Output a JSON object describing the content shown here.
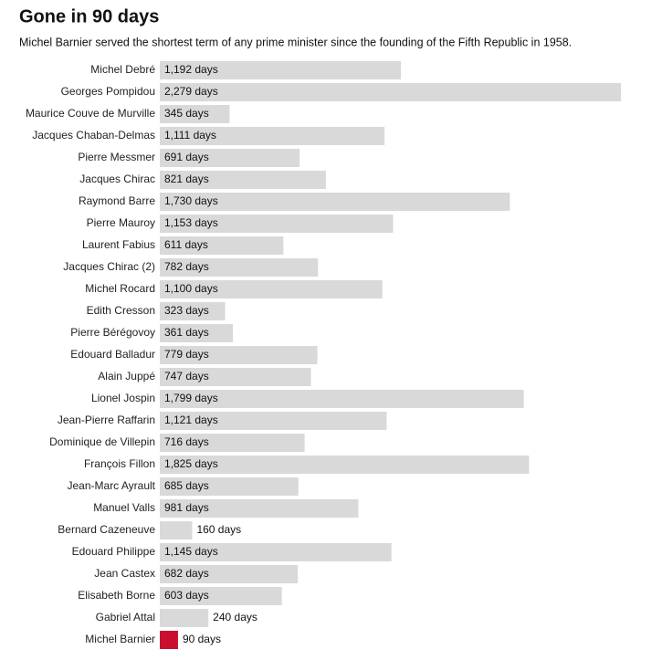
{
  "chart_data": {
    "type": "hbar",
    "title": "Gone in 90 days",
    "subtitle": "Michel Barnier served the shortest term of any prime minister since the founding of the Fifth Republic in 1958.",
    "categories": [
      "Michel Debré",
      "Georges Pompidou",
      "Maurice Couve de Murville",
      "Jacques Chaban-Delmas",
      "Pierre Messmer",
      "Jacques Chirac",
      "Raymond Barre",
      "Pierre Mauroy",
      "Laurent Fabius",
      "Jacques Chirac (2)",
      "Michel Rocard",
      "Edith Cresson",
      "Pierre Bérégovoy",
      "Edouard Balladur",
      "Alain Juppé",
      "Lionel Jospin",
      "Jean-Pierre Raffarin",
      "Dominique de Villepin",
      "François Fillon",
      "Jean-Marc Ayrault",
      "Manuel Valls",
      "Bernard Cazeneuve",
      "Edouard Philippe",
      "Jean Castex",
      "Elisabeth Borne",
      "Gabriel Attal",
      "Michel Barnier"
    ],
    "values": [
      1192,
      2279,
      345,
      1111,
      691,
      821,
      1730,
      1153,
      611,
      782,
      1100,
      323,
      361,
      779,
      747,
      1799,
      1121,
      716,
      1825,
      685,
      981,
      160,
      1145,
      682,
      603,
      240,
      90
    ],
    "value_labels": [
      "1,192 days",
      "2,279 days",
      "345 days",
      "1,111 days",
      "691 days",
      "821 days",
      "1,730 days",
      "1,153 days",
      "611 days",
      "782 days",
      "1,100 days",
      "323 days",
      "361 days",
      "779 days",
      "747 days",
      "1,799 days",
      "1,121 days",
      "716 days",
      "1,825 days",
      "685 days",
      "981 days",
      "160 days",
      "1,145 days",
      "682 days",
      "603 days",
      "240 days",
      "90 days"
    ],
    "colors": [
      "#d9d9d9",
      "#d9d9d9",
      "#d9d9d9",
      "#d9d9d9",
      "#d9d9d9",
      "#d9d9d9",
      "#d9d9d9",
      "#d9d9d9",
      "#d9d9d9",
      "#d9d9d9",
      "#d9d9d9",
      "#d9d9d9",
      "#d9d9d9",
      "#d9d9d9",
      "#d9d9d9",
      "#d9d9d9",
      "#d9d9d9",
      "#d9d9d9",
      "#d9d9d9",
      "#d9d9d9",
      "#d9d9d9",
      "#d9d9d9",
      "#d9d9d9",
      "#d9d9d9",
      "#d9d9d9",
      "#d9d9d9",
      "#c8102e"
    ]
  }
}
